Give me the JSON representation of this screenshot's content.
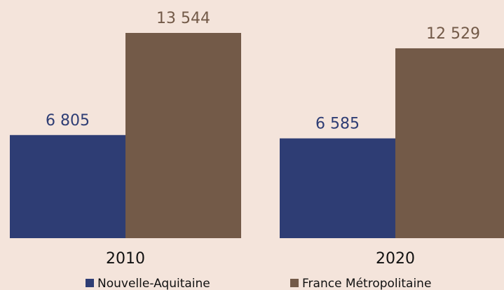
{
  "chart_data": {
    "type": "bar",
    "categories": [
      "2010",
      "2020"
    ],
    "series": [
      {
        "name": "Nouvelle-Aquitaine",
        "color": "#2e3d74",
        "values": [
          6805,
          6585
        ],
        "value_labels": [
          "6 805",
          "6 585"
        ]
      },
      {
        "name": "France Métropolitaine",
        "color": "#735a48",
        "values": [
          13544,
          12529
        ],
        "value_labels": [
          "13 544",
          "12 529"
        ]
      }
    ]
  }
}
